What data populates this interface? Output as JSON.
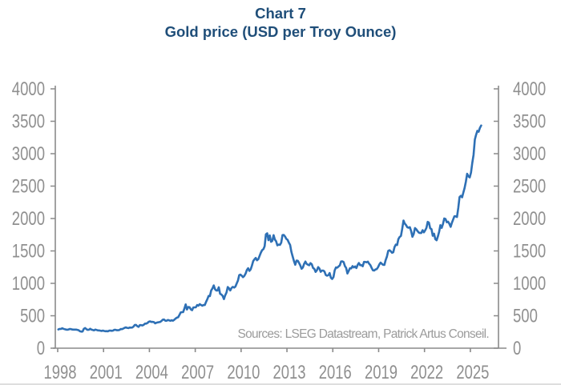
{
  "title": {
    "line1": "Chart 7",
    "line2": "Gold price (USD per Troy Ounce)"
  },
  "source_note": "Sources: LSEG Datastream, Patrick Artus Conseil.",
  "colors": {
    "title": "#1F4E79",
    "line": "#2E70B5",
    "axis": "#8A8A8A",
    "tick_label": "#8F8F8F",
    "source_text": "#9B9B9B"
  },
  "chart_data": {
    "type": "line",
    "title": "Chart 7",
    "subtitle": "Gold price (USD per Troy Ounce)",
    "xlabel": "",
    "ylabel": "USD per Troy Ounce",
    "grid": false,
    "legend_position": "none",
    "dual_y_axis": true,
    "ylim": [
      0,
      4000
    ],
    "y_ticks": [
      0,
      500,
      1000,
      1500,
      2000,
      2500,
      3000,
      3500,
      4000
    ],
    "x_ticks": [
      1998,
      2001,
      2004,
      2007,
      2010,
      2013,
      2016,
      2019,
      2022,
      2025
    ],
    "x_start_year": 1998,
    "points_per_year": 12,
    "series": [
      {
        "name": "Gold price (USD per Troy Ounce)",
        "values": [
          289,
          297,
          296,
          308,
          299,
          292,
          288,
          284,
          289,
          296,
          294,
          288,
          287,
          287,
          286,
          283,
          276,
          261,
          256,
          257,
          299,
          311,
          294,
          283,
          284,
          300,
          286,
          280,
          275,
          286,
          281,
          274,
          274,
          270,
          266,
          272,
          266,
          262,
          263,
          260,
          272,
          270,
          268,
          272,
          284,
          283,
          276,
          276,
          282,
          295,
          294,
          302,
          314,
          321,
          313,
          310,
          319,
          317,
          319,
          333,
          357,
          359,
          340,
          328,
          355,
          356,
          351,
          360,
          379,
          379,
          389,
          407,
          414,
          405,
          406,
          403,
          383,
          392,
          398,
          401,
          405,
          420,
          439,
          442,
          424,
          423,
          434,
          429,
          422,
          431,
          424,
          437,
          456,
          470,
          476,
          510,
          550,
          555,
          557,
          611,
          675,
          596,
          634,
          632,
          599,
          586,
          627,
          630,
          631,
          665,
          655,
          679,
          667,
          656,
          665,
          666,
          713,
          755,
          806,
          804,
          890,
          922,
          968,
          910,
          889,
          889,
          940,
          839,
          829,
          807,
          757,
          816,
          858,
          943,
          924,
          890,
          929,
          946,
          934,
          950,
          997,
          1043,
          1127,
          1135,
          1118,
          1095,
          1114,
          1149,
          1205,
          1233,
          1193,
          1216,
          1271,
          1342,
          1370,
          1391,
          1356,
          1373,
          1424,
          1474,
          1512,
          1529,
          1573,
          1756,
          1772,
          1666,
          1739,
          1641,
          1656,
          1743,
          1674,
          1650,
          1587,
          1597,
          1594,
          1627,
          1745,
          1747,
          1722,
          1685,
          1671,
          1628,
          1593,
          1485,
          1414,
          1343,
          1286,
          1351,
          1348,
          1316,
          1276,
          1225,
          1244,
          1301,
          1336,
          1299,
          1288,
          1279,
          1311,
          1295,
          1238,
          1223,
          1176,
          1201,
          1251,
          1227,
          1178,
          1198,
          1198,
          1181,
          1128,
          1118,
          1125,
          1159,
          1086,
          1068,
          1097,
          1199,
          1246,
          1242,
          1260,
          1276,
          1337,
          1340,
          1327,
          1266,
          1238,
          1152,
          1192,
          1234,
          1231,
          1266,
          1246,
          1260,
          1236,
          1283,
          1314,
          1280,
          1282,
          1264,
          1331,
          1330,
          1325,
          1334,
          1303,
          1281,
          1238,
          1201,
          1198,
          1215,
          1220,
          1250,
          1291,
          1320,
          1301,
          1286,
          1284,
          1359,
          1413,
          1500,
          1511,
          1495,
          1471,
          1479,
          1560,
          1597,
          1591,
          1683,
          1716,
          1732,
          1843,
          1969,
          1922,
          1900,
          1866,
          1858,
          1867,
          1808,
          1718,
          1762,
          1853,
          1835,
          1807,
          1784,
          1777,
          1777,
          1820,
          1787,
          1817,
          1856,
          1948,
          1937,
          1848,
          1837,
          1733,
          1766,
          1681,
          1664,
          1725,
          1797,
          1898,
          1855,
          1913,
          2000,
          1992,
          1942,
          1951,
          1918,
          1871,
          1932,
          1984,
          2034,
          2034,
          2024,
          2160,
          2330,
          2351,
          2327,
          2398,
          2470,
          2568,
          2690,
          2651,
          2633,
          2708,
          2858,
          2983,
          3218,
          3289,
          3352,
          3338,
          3398,
          3434
        ]
      }
    ]
  }
}
